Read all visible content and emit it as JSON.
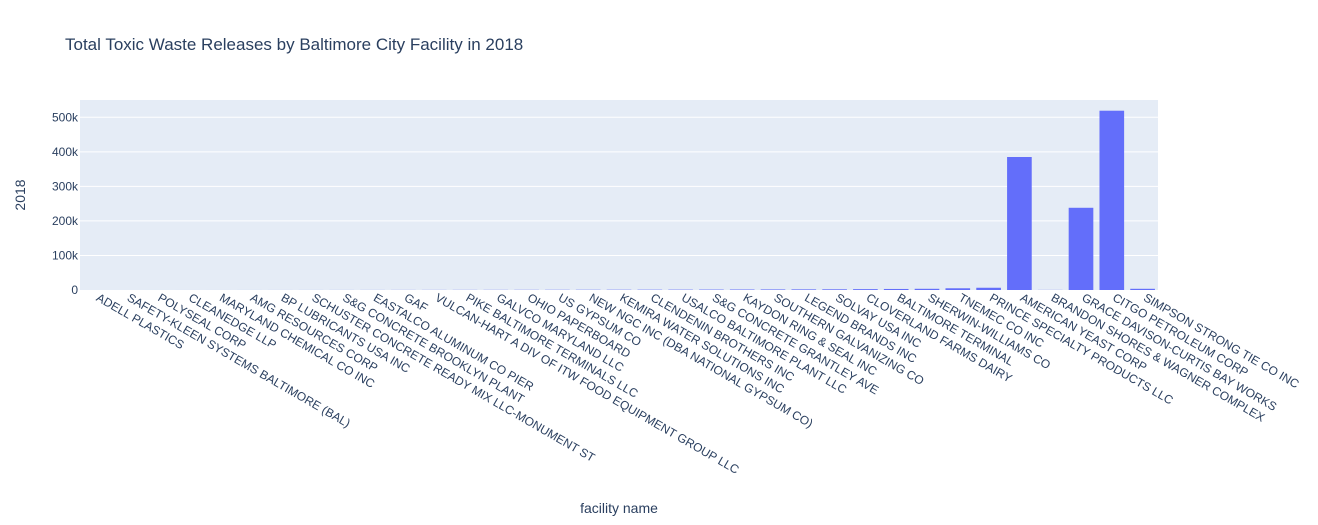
{
  "chart_data": {
    "type": "bar",
    "title": "Total Toxic Waste Releases by Baltimore City Facility in 2018",
    "xlabel": "facility name",
    "ylabel": "2018",
    "ylim": [
      0,
      550000
    ],
    "yticks": [
      0,
      100000,
      200000,
      300000,
      400000,
      500000
    ],
    "ytick_labels": [
      "0",
      "100k",
      "200k",
      "300k",
      "400k",
      "500k"
    ],
    "grid": true,
    "bar_color": "#636efa",
    "plot_bg": "#e5ecf6",
    "categories": [
      "ADELL PLASTICS",
      "SAFETY-KLEEN SYSTEMS BALTIMORE (BAL)",
      "POLYSEAL CORP",
      "CLEANEDGE LLP",
      "MARYLAND CHEMICAL CO INC",
      "AMG RESOURCES CORP",
      "BP LUBRICANTS USA INC",
      "SCHUSTER CONCRETE READY MIX LLC-MONUMENT ST",
      "S&G CONCRETE BROOKLYN PLANT",
      "EASTALCO ALUMINUM CO PIER",
      "GAF",
      "VULCAN-HART A DIV OF ITW FOOD EQUIPMENT GROUP LLC",
      "PIKE BALTIMORE TERMINALS LLC",
      "GALVCO MARYLAND LLC",
      "OHIO PAPERBOARD",
      "US GYPSUM CO",
      "NEW NGC INC (DBA NATIONAL GYPSUM CO)",
      "KEMIRA WATER SOLUTIONS INC",
      "CLENDENIN BROTHERS INC",
      "USALCO BALTIMORE PLANT LLC",
      "S&G CONCRETE GRANTLEY AVE",
      "KAYDON RING & SEAL INC",
      "SOUTHERN GALVANIZING CO",
      "LEGEND BRANDS INC",
      "SOLVAY USA INC",
      "CLOVERLAND FARMS DAIRY",
      "BALTIMORE TERMINAL",
      "SHERWIN-WILLIAMS CO",
      "TNEMEC CO INC",
      "PRINCE SPECIALTY PRODUCTS LLC",
      "AMERICAN YEAST CORP",
      "BRANDON SHORES & WAGNER COMPLEX",
      "GRACE DAVISON-CURTIS BAY WORKS",
      "CITGO PETROLEUM CORP",
      "SIMPSON STRONG TIE CO INC"
    ],
    "values": [
      2,
      5,
      10,
      20,
      30,
      50,
      80,
      100,
      150,
      200,
      250,
      300,
      350,
      400,
      500,
      600,
      700,
      800,
      900,
      1000,
      1200,
      1400,
      1600,
      1800,
      2000,
      2500,
      3000,
      3500,
      5000,
      6500,
      385000,
      300,
      238000,
      519000,
      3500
    ]
  }
}
